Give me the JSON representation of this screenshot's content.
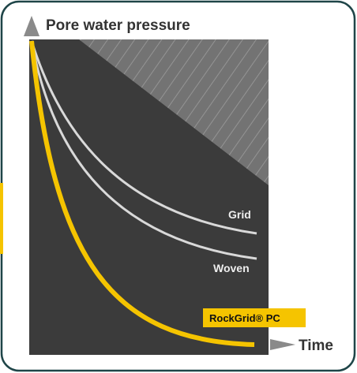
{
  "axes": {
    "y_label": "Pore water pressure",
    "x_label": "Time"
  },
  "curves": [
    {
      "label": "Grid"
    },
    {
      "label": "Woven"
    },
    {
      "label": "RockGrid® PC"
    }
  ]
}
